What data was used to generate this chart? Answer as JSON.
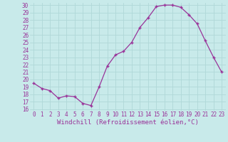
{
  "x": [
    0,
    1,
    2,
    3,
    4,
    5,
    6,
    7,
    8,
    9,
    10,
    11,
    12,
    13,
    14,
    15,
    16,
    17,
    18,
    19,
    20,
    21,
    22,
    23
  ],
  "y": [
    19.5,
    18.8,
    18.5,
    17.5,
    17.8,
    17.7,
    16.8,
    16.5,
    19.0,
    21.8,
    23.3,
    23.8,
    25.0,
    27.0,
    28.3,
    29.8,
    30.0,
    30.0,
    29.7,
    28.7,
    27.5,
    25.2,
    23.0,
    21.0
  ],
  "line_color": "#993399",
  "marker": "+",
  "markersize": 3.5,
  "linewidth": 0.9,
  "markeredgewidth": 1.0,
  "xlabel": "Windchill (Refroidissement éolien,°C)",
  "xlabel_fontsize": 6.5,
  "xtick_labels": [
    "0",
    "1",
    "2",
    "3",
    "4",
    "5",
    "6",
    "7",
    "8",
    "9",
    "10",
    "11",
    "12",
    "13",
    "14",
    "15",
    "16",
    "17",
    "18",
    "19",
    "20",
    "21",
    "22",
    "23"
  ],
  "ytick_min": 16,
  "ytick_max": 30,
  "ytick_step": 1,
  "bg_color": "#c8eaea",
  "grid_color": "#b0d8d8",
  "tick_color": "#993399",
  "tick_fontsize": 5.5,
  "ylim_min": 15.8,
  "ylim_max": 30.3
}
